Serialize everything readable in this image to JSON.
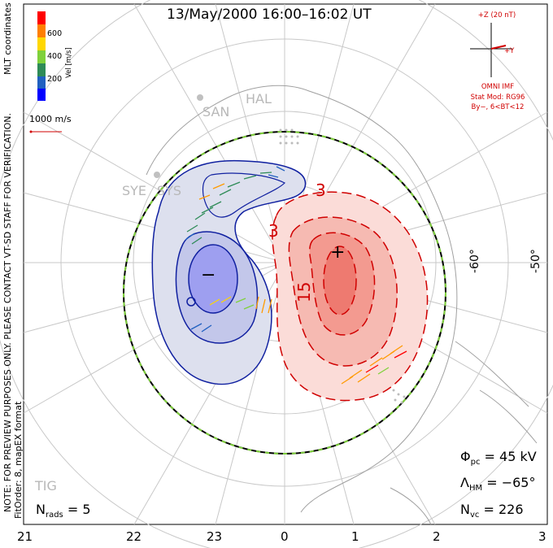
{
  "title": "13/May/2000  16:00–16:02  UT",
  "mlt_labels": [
    "21",
    "22",
    "23",
    "0",
    "1",
    "2",
    "3"
  ],
  "lat_labels": [
    "-60°",
    "-50°"
  ],
  "stations": [
    "SAN",
    "HAL",
    "SYE",
    "SYS",
    "TIG"
  ],
  "imf": {
    "z_label": "+Z (20 nT)",
    "y_label": "+Y",
    "source": "OMNI IMF",
    "model": "Stat Mod: RG96",
    "condition": "By−, 6<BT<12"
  },
  "colorbar": {
    "title": "Vel [m/s]",
    "ticks": [
      "600",
      "400",
      "200"
    ],
    "colors": [
      "#ff0000",
      "#ff7f00",
      "#ffd700",
      "#7fd13b",
      "#2e8b57",
      "#2060c0",
      "#0000ff"
    ]
  },
  "velocity_scale": "1000 m/s",
  "side_text": {
    "coords": "MLT coordinates",
    "note": "NOTE: FOR PREVIEW PURPOSES ONLY. PLEASE CONTACT VT-SD STAFF FOR VERIFICATION.",
    "fit": "FitOrder: 8, mapEX format"
  },
  "contours": {
    "neg_symbol": "−",
    "pos_symbol": "+",
    "labels": [
      "3",
      "3",
      "15"
    ]
  },
  "stats": {
    "phi_pc": "45 kV",
    "lambda_hm": "−65°",
    "n_vc": "226",
    "n_rads": "5"
  },
  "stats_labels": {
    "phi_symbol": "Φ",
    "phi_sub": "pc",
    "lambda_symbol": "Λ",
    "lambda_sub": "HM",
    "nvc_symbol": "N",
    "nvc_sub": "vc",
    "nrads_symbol": "N",
    "nrads_sub": "rads"
  }
}
